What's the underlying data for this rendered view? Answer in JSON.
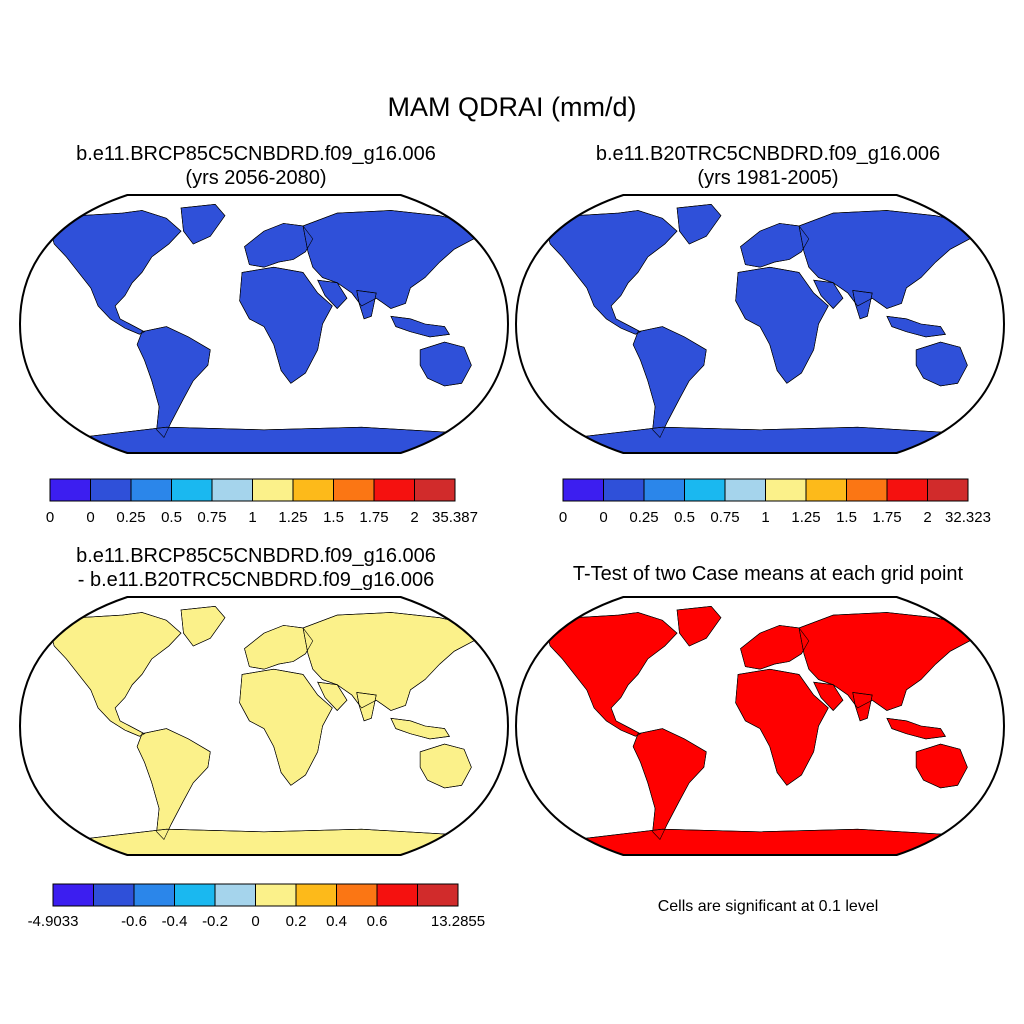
{
  "figure": {
    "title": "MAM QDRAI (mm/d)"
  },
  "panels": [
    {
      "id": "p1",
      "title_line1": "b.e11.BRCP85C5CNBDRD.f09_g16.006",
      "title_line2": "(yrs 2056-2080)",
      "colorbar": {
        "colors": [
          "#3c1ef0",
          "#2f50d9",
          "#2b86ea",
          "#1ab8f0",
          "#a5d4ec",
          "#fbf18a",
          "#fdba1a",
          "#fb7614",
          "#f5110f",
          "#d12b2b"
        ],
        "labels": [
          "0",
          "0",
          "0.25",
          "0.5",
          "0.75",
          "1",
          "1.25",
          "1.5",
          "1.75",
          "2",
          "35.387"
        ]
      }
    },
    {
      "id": "p2",
      "title_line1": "b.e11.B20TRC5CNBDRD.f09_g16.006",
      "title_line2": "(yrs 1981-2005)",
      "colorbar": {
        "colors": [
          "#3c1ef0",
          "#2f50d9",
          "#2b86ea",
          "#1ab8f0",
          "#a5d4ec",
          "#fbf18a",
          "#fdba1a",
          "#fb7614",
          "#f5110f",
          "#d12b2b"
        ],
        "labels": [
          "0",
          "0",
          "0.25",
          "0.5",
          "0.75",
          "1",
          "1.25",
          "1.5",
          "1.75",
          "2",
          "32.323"
        ]
      }
    },
    {
      "id": "p3",
      "title_line1": "b.e11.BRCP85C5CNBDRD.f09_g16.006",
      "title_line2": "- b.e11.B20TRC5CNBDRD.f09_g16.006",
      "colorbar": {
        "colors": [
          "#3c1ef0",
          "#2f50d9",
          "#2b86ea",
          "#1ab8f0",
          "#a5d4ec",
          "#fbf18a",
          "#fdba1a",
          "#fb7614",
          "#f5110f",
          "#d12b2b"
        ],
        "labels": [
          "-4.9033",
          "",
          "-0.6",
          "-0.4",
          "-0.2",
          "0",
          "0.2",
          "0.4",
          "0.6",
          "",
          "13.2855"
        ]
      }
    },
    {
      "id": "p4",
      "title_line1": "T-Test of two Case means at each grid point",
      "note": "Cells are significant at 0.1 level",
      "significance_color": "#ff0000"
    }
  ],
  "colors": {
    "ocean": "#ffffff",
    "land_dry": "#2f50d9",
    "land_wet": "#d12b2b",
    "diff_base": "#fbf18a",
    "sig": "#ff0000"
  }
}
